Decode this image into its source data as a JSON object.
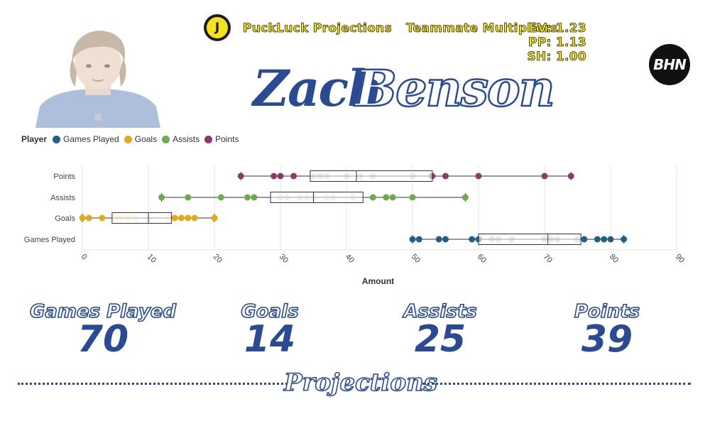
{
  "header": {
    "brand_logo_glyph": "J",
    "brand_name": "PuckLuck Projections",
    "multipliers_title": "Teammate Multipliers",
    "multipliers": {
      "ev": "EV: 1.23",
      "pp": "PP: 1.13",
      "sh": "SH: 1.00"
    },
    "partner_logo_text": "BHN"
  },
  "player": {
    "first_name": "Zach",
    "last_name": "Benson"
  },
  "legend": {
    "title": "Player",
    "items": [
      {
        "label": "Games Played",
        "color": "#215f8a"
      },
      {
        "label": "Goals",
        "color": "#e3a81c"
      },
      {
        "label": "Assists",
        "color": "#6ea84f"
      },
      {
        "label": "Points",
        "color": "#8c3a6e"
      }
    ]
  },
  "chart_data": {
    "type": "box",
    "xlabel": "Amount",
    "ylabel": "",
    "xlim": [
      0,
      90
    ],
    "xticks": [
      "0",
      "10",
      "20",
      "30",
      "40",
      "50",
      "60",
      "70",
      "80",
      "90"
    ],
    "grid": true,
    "legend_placement": "top-left",
    "categories": [
      "Points",
      "Assists",
      "Goals",
      "Games Played"
    ],
    "series": [
      {
        "name": "Points",
        "color": "#8c3a6e",
        "min": 24,
        "q1": 34.5,
        "median": 41.5,
        "q3": 53,
        "max": 74,
        "points": [
          24,
          29,
          30,
          32,
          35,
          36,
          37,
          40,
          42,
          44,
          50,
          53,
          55,
          60,
          70,
          74
        ]
      },
      {
        "name": "Assists",
        "color": "#6ea84f",
        "min": 12,
        "q1": 28.5,
        "median": 35,
        "q3": 42.5,
        "max": 58,
        "points": [
          12,
          16,
          21,
          25,
          26,
          30,
          31,
          33,
          34,
          35,
          37,
          38,
          41,
          44,
          46,
          47,
          50,
          58
        ]
      },
      {
        "name": "Goals",
        "color": "#e3a81c",
        "min": 0,
        "q1": 4.5,
        "median": 10,
        "q3": 13.5,
        "max": 20,
        "points": [
          0,
          1,
          3,
          5,
          6,
          7,
          8,
          10,
          13,
          14,
          15,
          16,
          17,
          20
        ]
      },
      {
        "name": "Games Played",
        "color": "#215f8a",
        "min": 50,
        "q1": 60,
        "median": 70.5,
        "q3": 75.5,
        "max": 82,
        "points": [
          50,
          51,
          54,
          55,
          59,
          60,
          62,
          63,
          65,
          70,
          71,
          72,
          75,
          76,
          78,
          79,
          80,
          82
        ]
      }
    ]
  },
  "stats": [
    {
      "label": "Games Played",
      "value": "70"
    },
    {
      "label": "Goals",
      "value": "14"
    },
    {
      "label": "Assists",
      "value": "25"
    },
    {
      "label": "Points",
      "value": "39"
    }
  ],
  "footer": {
    "title": "Projections"
  }
}
